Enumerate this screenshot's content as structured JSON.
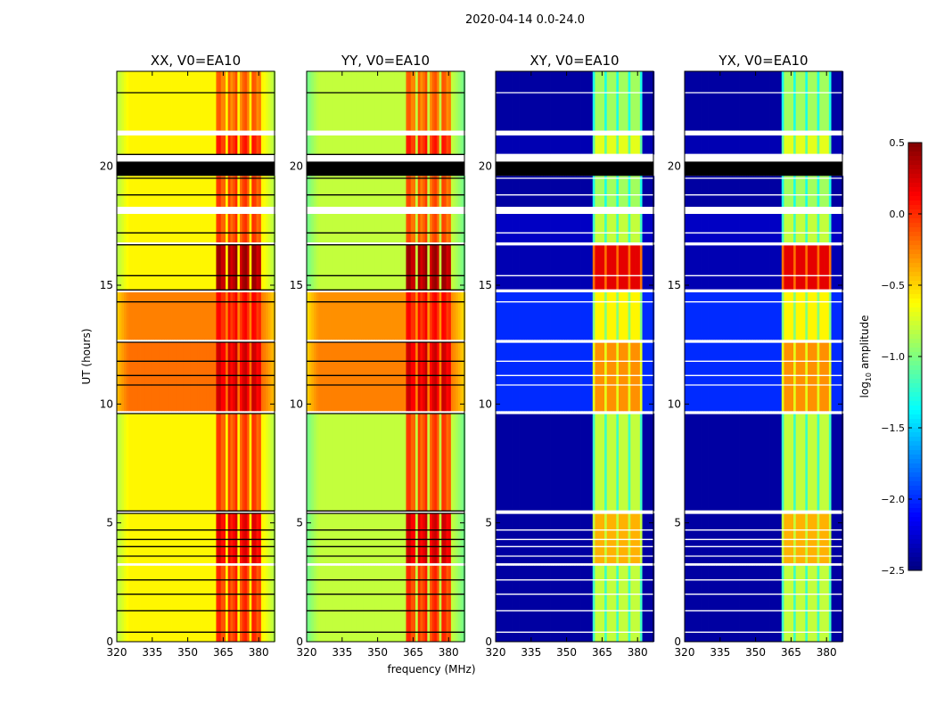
{
  "chart_data": {
    "type": "heatmap",
    "title": "2020-04-14 0.0-24.0",
    "xlabel": "frequency (MHz)",
    "ylabel": "UT (hours)",
    "xlim": [
      320,
      386.7
    ],
    "ylim": [
      0,
      24
    ],
    "xticks": [
      "320",
      "335",
      "350",
      "365",
      "380"
    ],
    "xtick_values": [
      320,
      335,
      350,
      365,
      380
    ],
    "yticks": [
      "0",
      "5",
      "10",
      "15",
      "20"
    ],
    "ytick_values": [
      0,
      5,
      10,
      15,
      20
    ],
    "colorbar": {
      "label_prefix": "log",
      "label_sub": "10",
      "label_suffix": " amplitude",
      "range": [
        -2.5,
        0.5
      ],
      "colormap": "jet",
      "ticks": [
        "0.5",
        "0.0",
        "−0.5",
        "−1.0",
        "−1.5",
        "−2.0",
        "−2.5"
      ],
      "tick_values": [
        0.5,
        0.0,
        -0.5,
        -1.0,
        -1.5,
        -2.0,
        -2.5
      ]
    },
    "bands_mhz": [
      [
        362,
        366
      ],
      [
        367,
        371
      ],
      [
        372,
        376
      ],
      [
        377,
        381
      ]
    ],
    "segments_hours": [
      [
        0,
        3.2
      ],
      [
        3.3,
        5.4
      ],
      [
        5.5,
        9.6
      ],
      [
        9.7,
        12.6
      ],
      [
        12.7,
        14.7
      ],
      [
        14.8,
        16.7
      ],
      [
        16.8,
        18.0
      ],
      [
        18.3,
        19.6
      ],
      [
        20.5,
        21.3
      ],
      [
        21.5,
        24
      ]
    ],
    "panels": [
      {
        "title": "XX, V0=EA10",
        "background": [
          -0.6,
          -0.6,
          -0.6,
          -0.2,
          -0.25,
          -0.6,
          -0.6,
          -0.6,
          -0.6,
          -0.6
        ],
        "band": [
          -0.05,
          0.15,
          -0.1,
          0.2,
          0.05,
          0.35,
          -0.1,
          -0.1,
          0.0,
          -0.2
        ]
      },
      {
        "title": "YY, V0=EA10",
        "background": [
          -0.8,
          -0.8,
          -0.8,
          -0.25,
          -0.3,
          -0.8,
          -0.8,
          -0.8,
          -0.8,
          -0.8
        ],
        "band": [
          -0.05,
          0.2,
          -0.1,
          0.2,
          0.05,
          0.35,
          -0.15,
          -0.15,
          0.0,
          -0.2
        ]
      },
      {
        "title": "XY, V0=EA10",
        "background": [
          -2.4,
          -2.4,
          -2.4,
          -2.0,
          -2.0,
          -2.35,
          -2.3,
          -2.4,
          -2.35,
          -2.4
        ],
        "band": [
          -0.8,
          -0.4,
          -0.8,
          -0.3,
          -0.6,
          0.2,
          -0.8,
          -0.9,
          -0.7,
          -0.9
        ]
      },
      {
        "title": "YX, V0=EA10",
        "background": [
          -2.4,
          -2.4,
          -2.4,
          -2.0,
          -2.0,
          -2.35,
          -2.3,
          -2.4,
          -2.35,
          -2.4
        ],
        "band": [
          -0.8,
          -0.4,
          -0.8,
          -0.3,
          -0.6,
          0.2,
          -0.8,
          -0.9,
          -0.7,
          -0.9
        ]
      }
    ],
    "flagged_white_hours": [
      [
        21.3,
        21.5
      ],
      [
        20.2,
        20.5
      ],
      [
        18.0,
        18.3
      ],
      [
        3.2,
        3.3
      ]
    ],
    "flagged_black_hours": [
      [
        19.6,
        20.2
      ]
    ],
    "flag_lines_hours": [
      23.1,
      20.5,
      19.5,
      18.8,
      17.2,
      16.7,
      15.4,
      14.8,
      14.3,
      12.6,
      11.8,
      11.2,
      10.8,
      9.6,
      5.5,
      5.4,
      4.7,
      4.3,
      4.0,
      3.6,
      2.6,
      2.0,
      1.3,
      0.4
    ]
  }
}
